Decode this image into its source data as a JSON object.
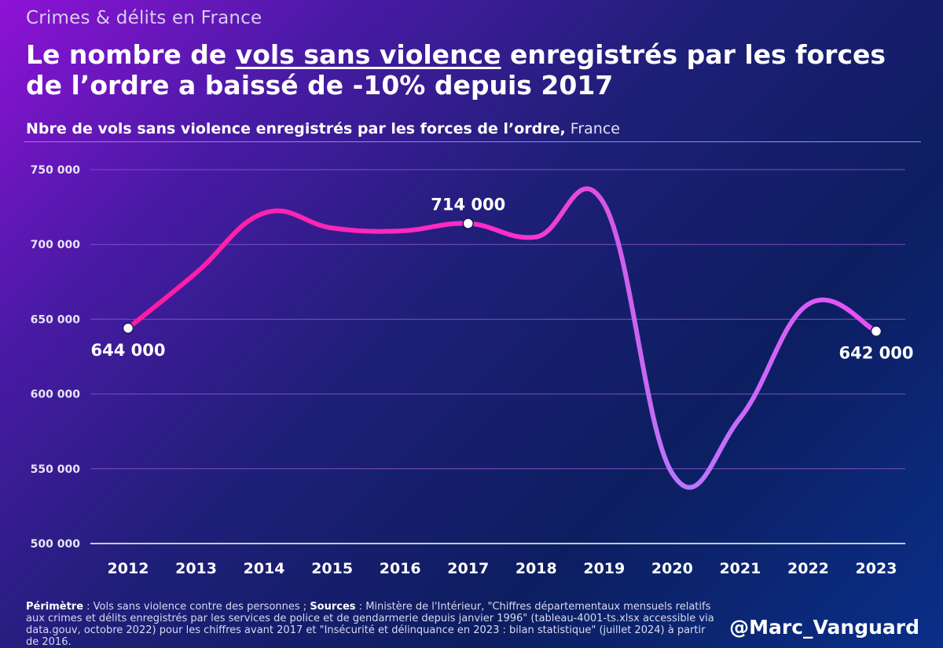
{
  "kicker": "Crimes & délits en France",
  "headline": {
    "pre": "Le nombre de ",
    "highlight": "vols sans violence",
    "post": " enregistrés par les forces de l’ordre a baissé de -10% depuis 2017"
  },
  "subtitle": {
    "bold": "Nbre de vols sans violence enregistrés par les forces de l’ordre,",
    "light": " France"
  },
  "footnote": {
    "perimetre_label": "Périmètre",
    "perimetre_text": " : Vols sans violence contre des personnes ; ",
    "sources_label": "Sources",
    "sources_text": " : Ministère de l'Intérieur, \"Chiffres départementaux mensuels relatifs aux crimes et délits enregistrés par les services de police et de gendarmerie depuis janvier 1996\" (tableau-4001-ts.xlsx accessible via data.gouv, octobre 2022) pour les chiffres avant 2017 et \"Insécurité et délinquance en 2023 : bilan statistique\" (juillet 2024) à partir de 2016."
  },
  "handle": "@Marc_Vanguard",
  "colors": {
    "line_start": "#ff1493",
    "line_mid": "#ff2fc9",
    "line_dip": "#b778ff",
    "line_end": "#ff3cf0",
    "grid": "#7b4fc4",
    "axis": "#ffffff"
  },
  "chart_data": {
    "type": "line",
    "title": "Nbre de vols sans violence enregistrés par les forces de l’ordre, France",
    "xlabel": "",
    "ylabel": "",
    "ylim": [
      500000,
      750000
    ],
    "yticks": [
      500000,
      550000,
      600000,
      650000,
      700000,
      750000
    ],
    "ytick_labels": [
      "500 000",
      "550 000",
      "600 000",
      "650 000",
      "700 000",
      "750 000"
    ],
    "categories": [
      "2012",
      "2013",
      "2014",
      "2015",
      "2016",
      "2017",
      "2018",
      "2019",
      "2020",
      "2021",
      "2022",
      "2023"
    ],
    "series": [
      {
        "name": "Vols sans violence",
        "values": [
          644000,
          681000,
          721000,
          711000,
          709000,
          714000,
          705000,
          727000,
          547000,
          584000,
          660000,
          642000
        ]
      }
    ],
    "annotations": [
      {
        "index": 0,
        "label": "644 000",
        "placement": "below"
      },
      {
        "index": 5,
        "label": "714 000",
        "placement": "above"
      },
      {
        "index": 11,
        "label": "642 000",
        "placement": "below"
      }
    ]
  }
}
